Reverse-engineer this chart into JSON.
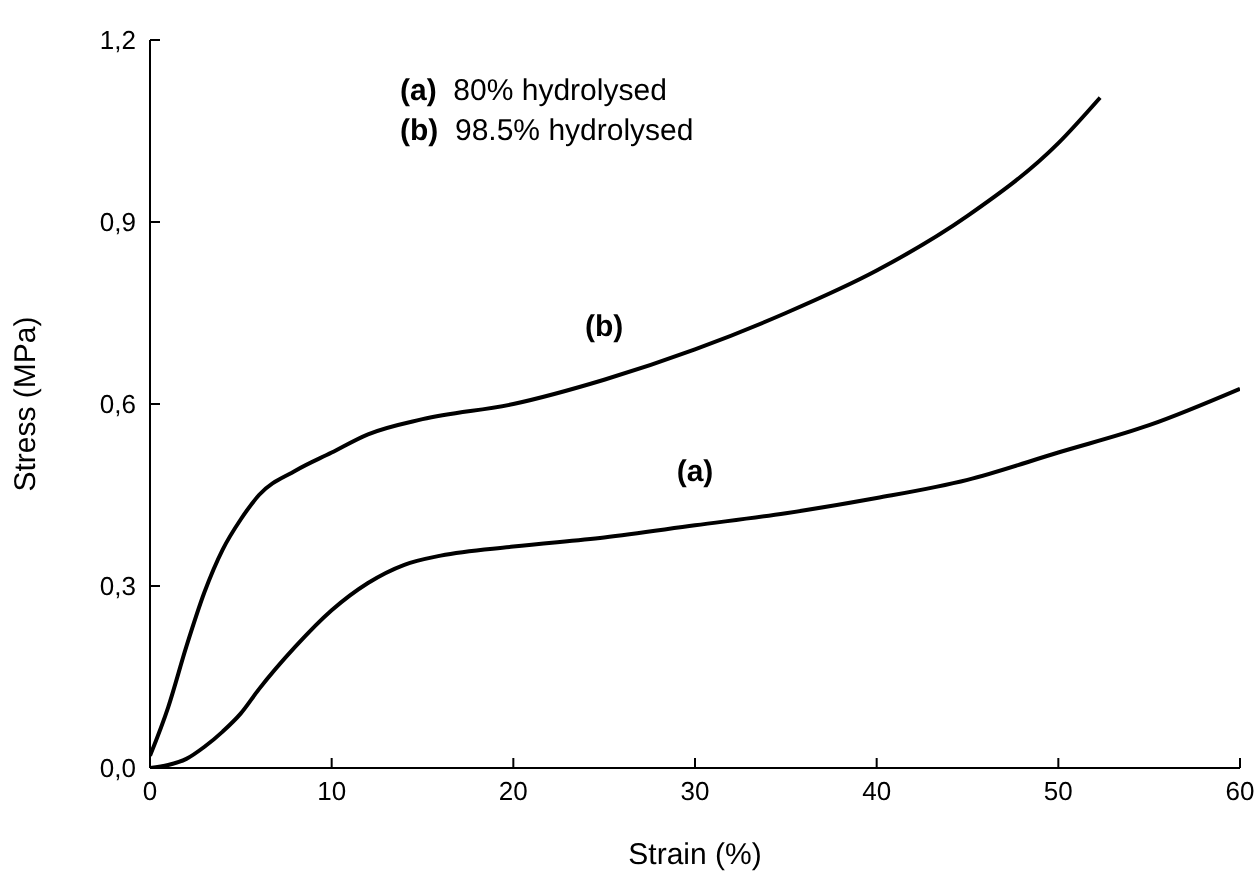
{
  "chart_data": {
    "type": "line",
    "xlabel": "Strain (%)",
    "ylabel": "Stress (MPa)",
    "xlim": [
      0,
      60
    ],
    "xticks": [
      0,
      10,
      20,
      30,
      40,
      50,
      60
    ],
    "ylim": [
      0,
      1.2
    ],
    "yticks": [
      {
        "value": 0,
        "label": "0,0"
      },
      {
        "value": 0.3,
        "label": "0,3"
      },
      {
        "value": 0.6,
        "label": "0,6"
      },
      {
        "value": 0.9,
        "label": "0,9"
      },
      {
        "value": 1.2,
        "label": "1,2"
      }
    ],
    "grid": false,
    "legend": false,
    "marker": "none",
    "line_style": "solid",
    "series": [
      {
        "name": "(a)",
        "color": "#000000",
        "x": [
          0,
          1,
          2,
          3,
          4,
          5,
          6,
          8,
          10,
          12,
          14,
          16,
          20,
          25,
          30,
          35,
          40,
          45,
          50,
          55,
          60
        ],
        "values": [
          0,
          0.005,
          0.015,
          0.035,
          0.06,
          0.09,
          0.13,
          0.2,
          0.26,
          0.305,
          0.335,
          0.35,
          0.365,
          0.38,
          0.4,
          0.42,
          0.445,
          0.475,
          0.52,
          0.565,
          0.625
        ]
      },
      {
        "name": "(b)",
        "color": "#000000",
        "x": [
          0,
          1,
          2,
          3,
          4,
          5,
          6,
          8,
          10,
          12,
          15,
          20,
          25,
          30,
          35,
          40,
          45,
          50,
          52.3
        ],
        "values": [
          0.02,
          0.1,
          0.2,
          0.29,
          0.36,
          0.41,
          0.45,
          0.49,
          0.52,
          0.55,
          0.575,
          0.6,
          0.64,
          0.69,
          0.75,
          0.82,
          0.91,
          1.03,
          1.105
        ]
      }
    ],
    "annotations": [
      "(a)  80% hydrolysed",
      "(b)  98.5% hydrolysed"
    ]
  }
}
